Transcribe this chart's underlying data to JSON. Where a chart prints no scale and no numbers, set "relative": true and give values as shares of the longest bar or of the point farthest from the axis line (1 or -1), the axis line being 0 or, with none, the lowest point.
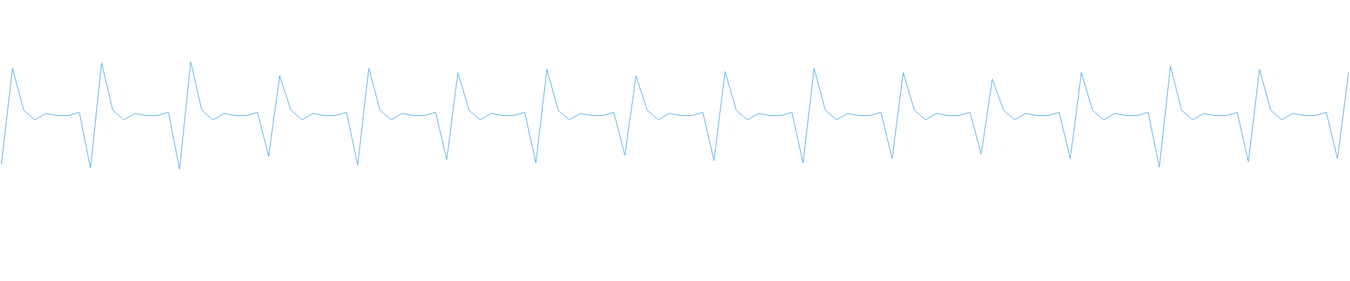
{
  "chart_data": {
    "type": "line",
    "relative": true,
    "color": "#5aaee3",
    "categories": [
      null,
      null,
      null,
      null,
      null,
      null,
      null,
      null,
      null,
      null,
      null,
      null,
      null,
      null,
      null,
      null,
      null,
      null,
      null,
      null,
      null,
      null,
      null,
      null,
      null,
      null,
      null,
      null,
      null,
      null,
      null,
      null,
      null,
      null,
      null,
      null,
      null,
      null,
      null,
      null,
      null,
      null,
      null,
      null,
      null,
      null,
      null,
      null,
      null,
      null,
      null,
      null,
      null,
      null,
      null,
      null,
      null,
      null,
      null,
      null,
      null,
      null,
      null,
      null,
      null,
      null,
      null,
      null,
      null,
      null,
      null,
      null,
      null,
      null,
      null,
      null,
      null,
      null,
      null,
      null,
      null,
      null,
      null,
      null,
      null,
      null,
      null,
      null,
      null,
      null,
      null,
      null,
      null,
      null,
      null,
      null,
      null,
      null,
      null,
      null,
      null,
      null,
      null,
      null,
      null,
      null,
      null,
      null,
      null,
      null,
      null,
      null,
      null,
      null,
      null,
      null,
      null,
      null,
      null,
      null,
      null,
      null
    ],
    "values": [
      0.05,
      0.94,
      0.55,
      0.46,
      0.52,
      0.5,
      0.5,
      0.53,
      0.01,
      0.99,
      0.55,
      0.46,
      0.52,
      0.5,
      0.5,
      0.53,
      0.0,
      1.0,
      0.55,
      0.46,
      0.52,
      0.5,
      0.5,
      0.53,
      0.12,
      0.87,
      0.55,
      0.46,
      0.52,
      0.5,
      0.5,
      0.53,
      0.04,
      0.94,
      0.55,
      0.46,
      0.52,
      0.5,
      0.5,
      0.53,
      0.09,
      0.9,
      0.55,
      0.46,
      0.52,
      0.5,
      0.5,
      0.53,
      0.06,
      0.93,
      0.55,
      0.46,
      0.52,
      0.5,
      0.5,
      0.53,
      0.13,
      0.87,
      0.55,
      0.46,
      0.52,
      0.5,
      0.5,
      0.53,
      0.08,
      0.91,
      0.55,
      0.46,
      0.52,
      0.5,
      0.5,
      0.53,
      0.06,
      0.94,
      0.55,
      0.46,
      0.52,
      0.5,
      0.5,
      0.53,
      0.1,
      0.9,
      0.55,
      0.46,
      0.52,
      0.5,
      0.5,
      0.53,
      0.14,
      0.84,
      0.55,
      0.46,
      0.52,
      0.5,
      0.5,
      0.53,
      0.1,
      0.9,
      0.55,
      0.46,
      0.52,
      0.5,
      0.5,
      0.53,
      0.02,
      0.96,
      0.55,
      0.46,
      0.52,
      0.5,
      0.5,
      0.53,
      0.07,
      0.93,
      0.55,
      0.46,
      0.52,
      0.5,
      0.5,
      0.53,
      0.1,
      0.9
    ]
  }
}
